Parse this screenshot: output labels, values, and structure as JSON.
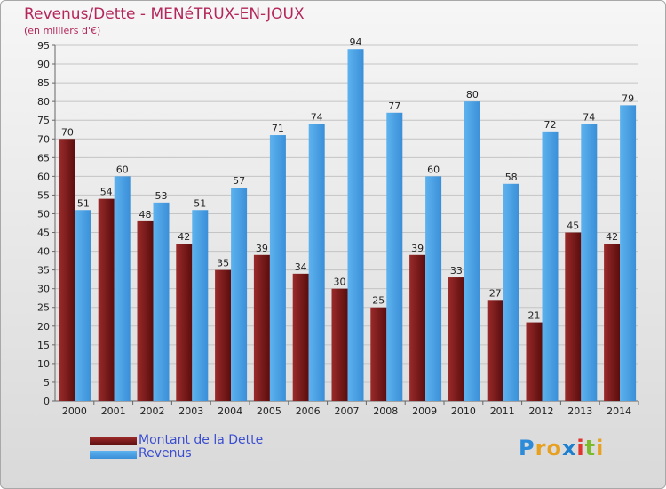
{
  "chart_data": {
    "type": "bar",
    "title": "Revenus/Dette - MENéTRUX-EN-JOUX",
    "subtitle": "(en milliers d'€)",
    "categories": [
      "2000",
      "2001",
      "2002",
      "2003",
      "2004",
      "2005",
      "2006",
      "2007",
      "2008",
      "2009",
      "2010",
      "2011",
      "2012",
      "2013",
      "2014"
    ],
    "series": [
      {
        "name": "Montant de la Dette",
        "color": "#7a1a1a",
        "values": [
          70,
          54,
          48,
          42,
          35,
          39,
          34,
          30,
          25,
          39,
          33,
          27,
          21,
          45,
          42
        ]
      },
      {
        "name": "Revenus",
        "color": "#4aa3e6",
        "values": [
          51,
          60,
          53,
          51,
          57,
          71,
          74,
          94,
          77,
          60,
          80,
          58,
          72,
          74,
          79
        ]
      }
    ],
    "ylim": [
      0,
      95
    ],
    "ytick_step": 5,
    "grid": true,
    "legend_position": "bottom-left"
  },
  "logo": {
    "letters": [
      "P",
      "r",
      "o",
      "x",
      "i",
      "t",
      "i"
    ],
    "colors": [
      "#2e8bd8",
      "#e8a020",
      "#e8a020",
      "#1c7fd0",
      "#e0342c",
      "#7cbb2a",
      "#e8a020"
    ]
  }
}
